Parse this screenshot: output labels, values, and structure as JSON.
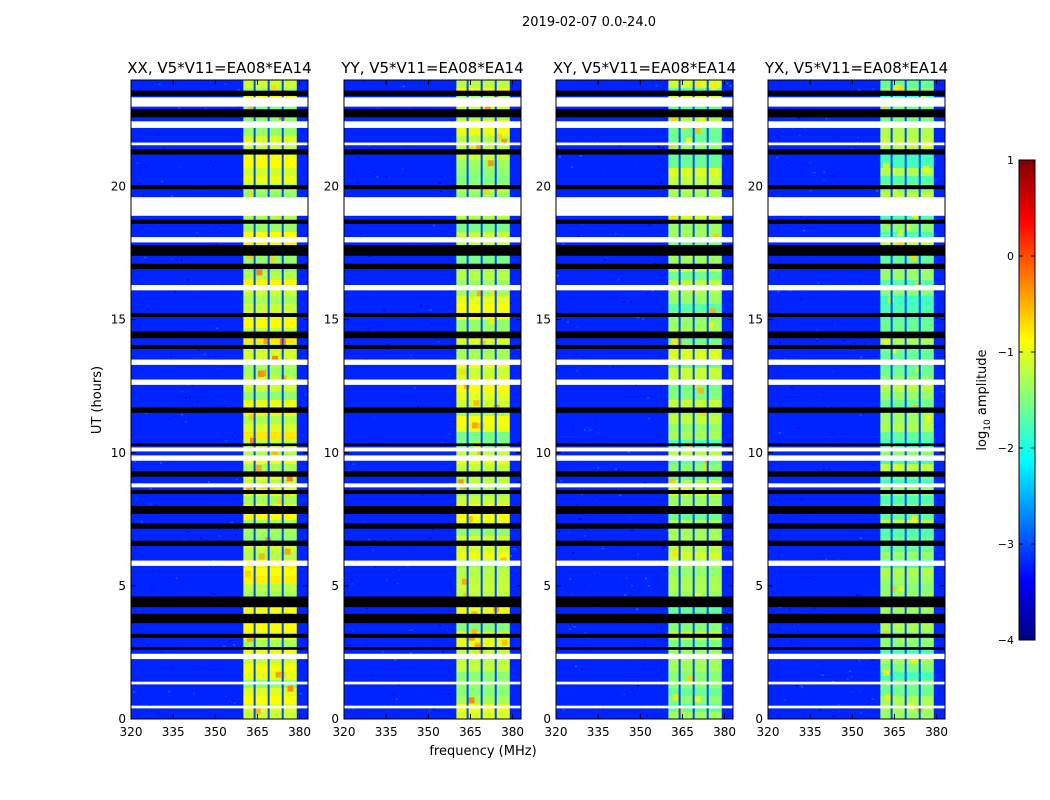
{
  "figure_title": "2019-02-07 0.0-24.0",
  "colors": {
    "jet": [
      "#00007f",
      "#0000ff",
      "#007fff",
      "#00ffff",
      "#7fff7f",
      "#ffff00",
      "#ff7f00",
      "#ff0000",
      "#7f0000"
    ],
    "flag_dark": "#000000",
    "flag_light": "#ffffff"
  },
  "colorbar": {
    "label_prefix": "log",
    "label_sub": "10",
    "label_suffix": " amplitude",
    "range": [
      -4,
      1
    ],
    "ticks": [
      {
        "v": 1,
        "t": "1"
      },
      {
        "v": 0,
        "t": "0"
      },
      {
        "v": -1,
        "t": "−1"
      },
      {
        "v": -2,
        "t": "−2"
      },
      {
        "v": -3,
        "t": "−3"
      },
      {
        "v": -4,
        "t": "−4"
      }
    ]
  },
  "chart_data": {
    "type": "heatmap",
    "xlabel": "frequency (MHz)",
    "ylabel": "UT (hours)",
    "xlim": [
      320,
      383
    ],
    "ylim": [
      0,
      24
    ],
    "xticks": [
      320,
      335,
      350,
      365,
      380
    ],
    "yticks": [
      0,
      5,
      10,
      15,
      20
    ],
    "signal_band_mhz": [
      360,
      379
    ],
    "signal_subband_edges_mhz": [
      364,
      369,
      374
    ],
    "panels": [
      {
        "title": "XX, V5*V11=EA08*EA14",
        "pol": "XX"
      },
      {
        "title": "YY, V5*V11=EA08*EA14",
        "pol": "YY"
      },
      {
        "title": "XY, V5*V11=EA08*EA14",
        "pol": "XY"
      },
      {
        "title": "YX, V5*V11=EA08*EA14",
        "pol": "YX"
      }
    ],
    "background_log_amplitude": -3.2,
    "band_log_amplitude": {
      "XX": -1.1,
      "YY": -1.2,
      "XY": -1.4,
      "YX": -1.5
    },
    "flagged_black_hours": [
      [
        23.4,
        23.6
      ],
      [
        22.6,
        22.9
      ],
      [
        21.2,
        21.4
      ],
      [
        19.9,
        20.05
      ],
      [
        18.6,
        18.75
      ],
      [
        17.4,
        17.8
      ],
      [
        16.9,
        17.1
      ],
      [
        15.1,
        15.25
      ],
      [
        14.3,
        14.55
      ],
      [
        13.9,
        14.05
      ],
      [
        11.5,
        11.7
      ],
      [
        10.25,
        10.35
      ],
      [
        9.1,
        9.3
      ],
      [
        8.45,
        8.6
      ],
      [
        7.7,
        8.0
      ],
      [
        7.15,
        7.35
      ],
      [
        6.5,
        6.7
      ],
      [
        4.2,
        4.6
      ],
      [
        3.6,
        3.95
      ],
      [
        3.05,
        3.2
      ],
      [
        2.6,
        2.7
      ]
    ],
    "flagged_white_hours": [
      [
        23.0,
        23.35
      ],
      [
        22.2,
        22.45
      ],
      [
        21.55,
        21.65
      ],
      [
        18.9,
        19.6
      ],
      [
        17.9,
        18.1
      ],
      [
        16.1,
        16.3
      ],
      [
        13.3,
        13.5
      ],
      [
        12.55,
        12.75
      ],
      [
        10.05,
        10.2
      ],
      [
        9.7,
        9.9
      ],
      [
        8.7,
        8.85
      ],
      [
        5.75,
        5.95
      ],
      [
        2.25,
        2.45
      ],
      [
        1.3,
        1.4
      ],
      [
        0.4,
        0.5
      ]
    ]
  }
}
